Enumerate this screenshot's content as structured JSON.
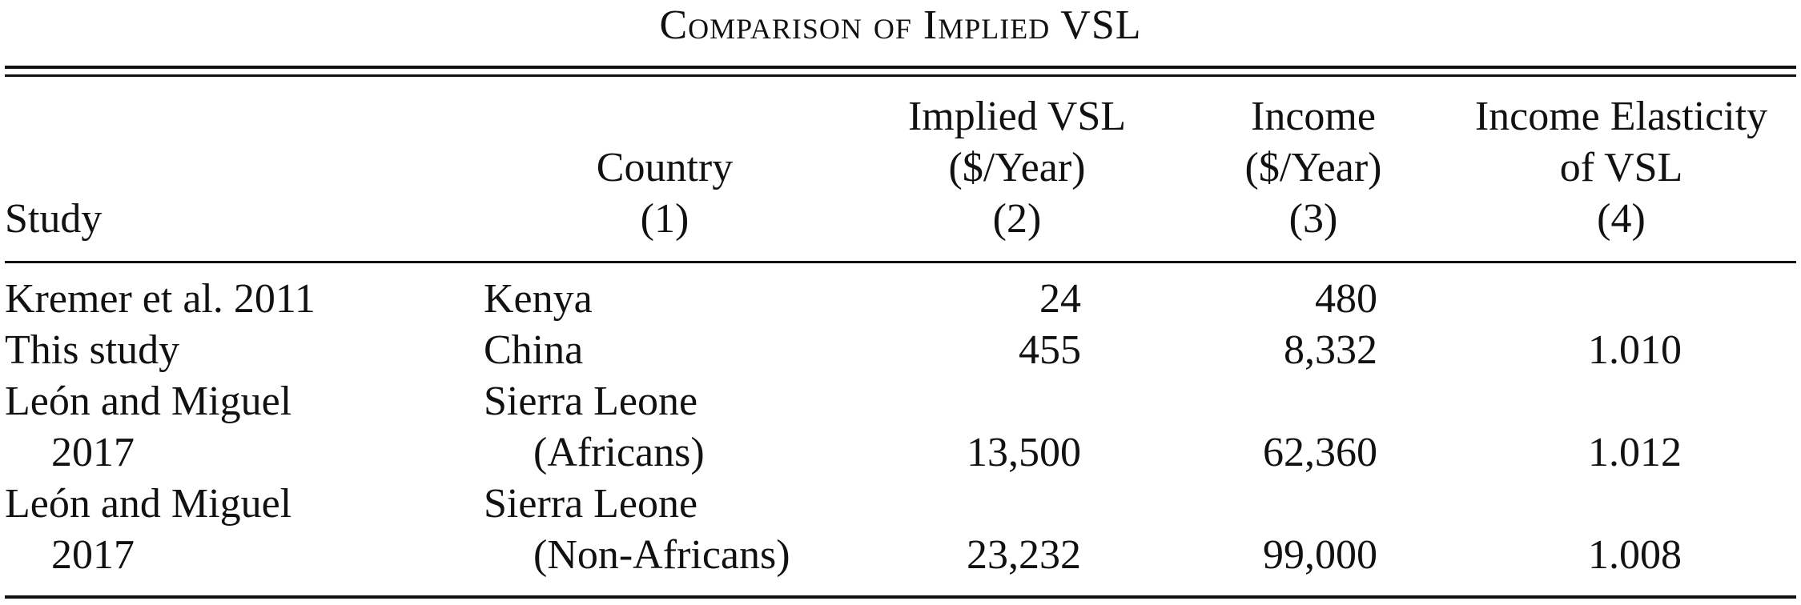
{
  "title": "Comparison of Implied VSL",
  "header": {
    "study": "Study",
    "country": [
      "Country",
      "(1)"
    ],
    "implied_vsl": [
      "Implied VSL",
      "($/Year)",
      "(2)"
    ],
    "income": [
      "Income",
      "($/Year)",
      "(3)"
    ],
    "elasticity": [
      "Income Elasticity",
      "of VSL",
      "(4)"
    ]
  },
  "rows": [
    {
      "study": [
        "Kremer et al. 2011"
      ],
      "country": [
        "Kenya"
      ],
      "implied_vsl": "24",
      "income": "480",
      "elasticity": ""
    },
    {
      "study": [
        "This study"
      ],
      "country": [
        "China"
      ],
      "implied_vsl": "455",
      "income": "8,332",
      "elasticity": "1.010"
    },
    {
      "study": [
        "León and Miguel",
        "2017"
      ],
      "country": [
        "Sierra Leone",
        "(Africans)"
      ],
      "implied_vsl": "13,500",
      "income": "62,360",
      "elasticity": "1.012"
    },
    {
      "study": [
        "León and Miguel",
        "2017"
      ],
      "country": [
        "Sierra Leone",
        "(Non-Africans)"
      ],
      "implied_vsl": "23,232",
      "income": "99,000",
      "elasticity": "1.008"
    }
  ]
}
